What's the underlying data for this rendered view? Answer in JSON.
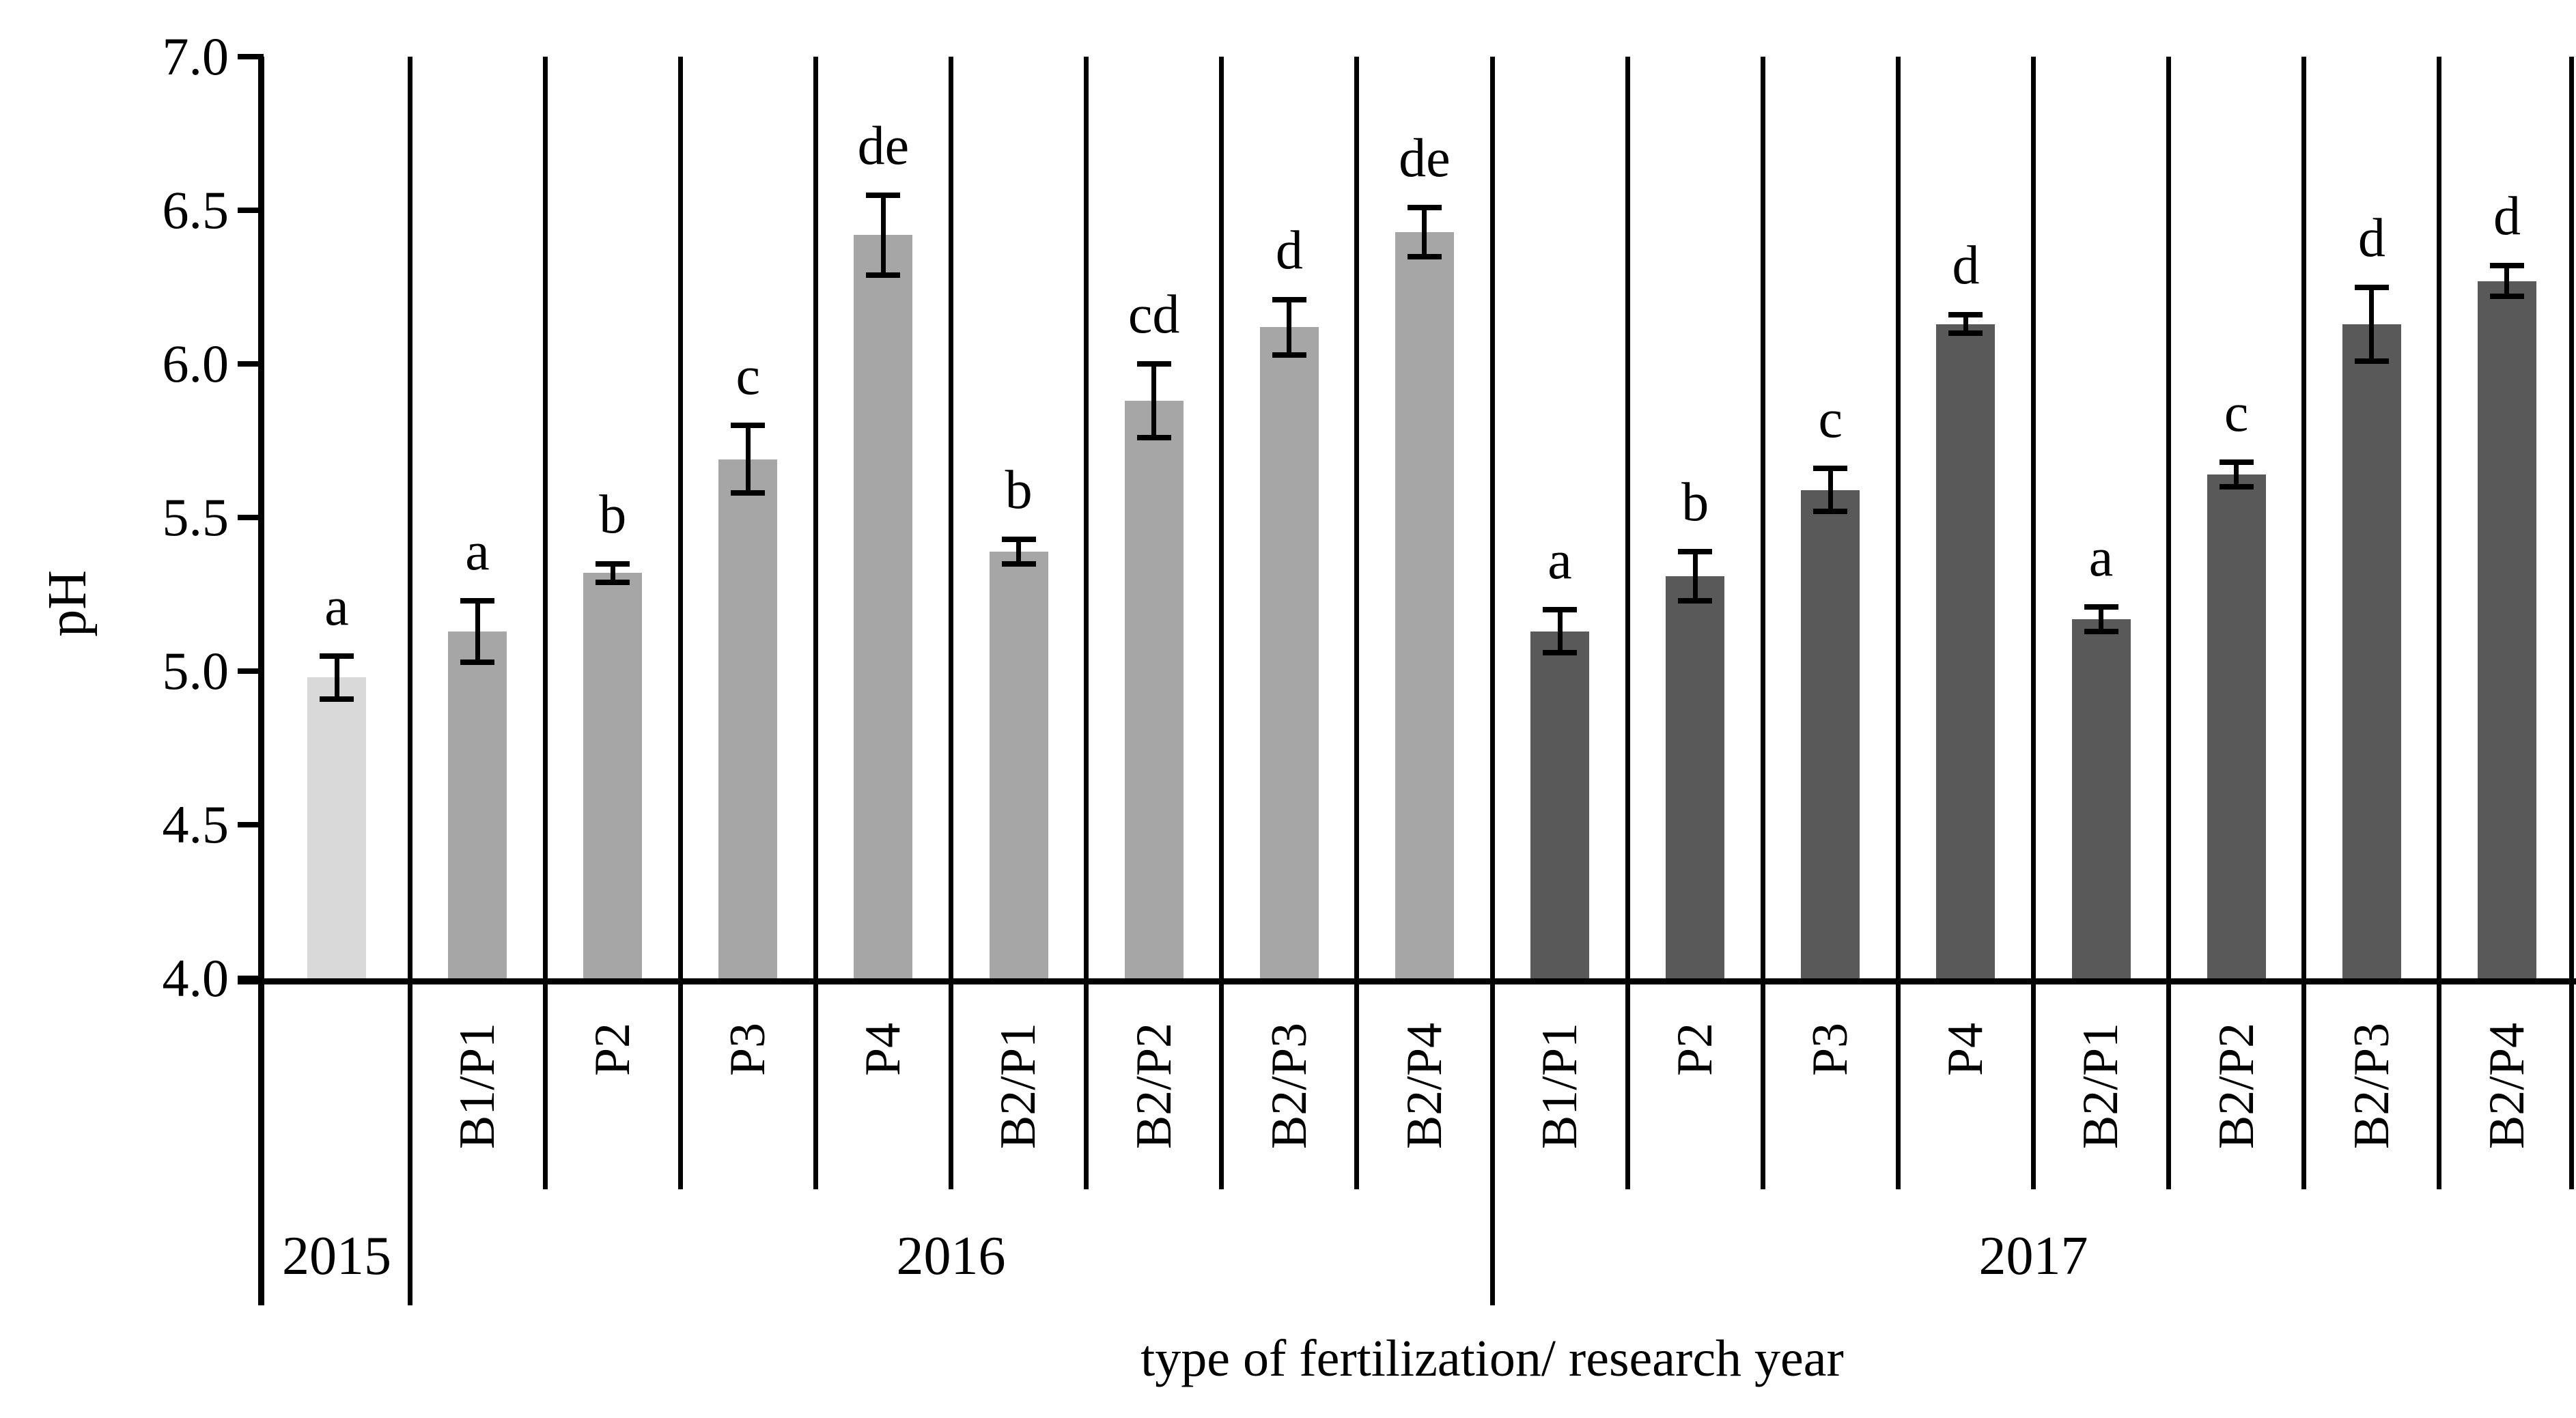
{
  "chart_data": {
    "type": "bar",
    "title": "",
    "xlabel": "type of fertilization/ research year",
    "ylabel": "pH",
    "ylim": [
      4.0,
      7.0
    ],
    "ytick_step": 0.5,
    "yticks": [
      "7.0",
      "6.5",
      "6.0",
      "5.5",
      "5.0",
      "4.5",
      "4.0"
    ],
    "grid": false,
    "legend": "none",
    "error_bars": true,
    "groups": [
      {
        "year": "2015",
        "color": "#d9d9d9",
        "bars": [
          {
            "label": "",
            "value": 4.98,
            "error": 0.07,
            "letter": "a"
          }
        ]
      },
      {
        "year": "2016",
        "color": "#a6a6a6",
        "bars": [
          {
            "label": "B1/P1",
            "value": 5.13,
            "error": 0.1,
            "letter": "a"
          },
          {
            "label": "P2",
            "value": 5.32,
            "error": 0.03,
            "letter": "b"
          },
          {
            "label": "P3",
            "value": 5.69,
            "error": 0.11,
            "letter": "c"
          },
          {
            "label": "P4",
            "value": 6.42,
            "error": 0.13,
            "letter": "de"
          },
          {
            "label": "B2/P1",
            "value": 5.39,
            "error": 0.04,
            "letter": "b"
          },
          {
            "label": "B2/P2",
            "value": 5.88,
            "error": 0.12,
            "letter": "cd"
          },
          {
            "label": "B2/P3",
            "value": 6.12,
            "error": 0.09,
            "letter": "d"
          },
          {
            "label": "B2/P4",
            "value": 6.43,
            "error": 0.08,
            "letter": "de"
          }
        ]
      },
      {
        "year": "2017",
        "color": "#595959",
        "bars": [
          {
            "label": "B1/P1",
            "value": 5.13,
            "error": 0.07,
            "letter": "a"
          },
          {
            "label": "P2",
            "value": 5.31,
            "error": 0.08,
            "letter": "b"
          },
          {
            "label": "P3",
            "value": 5.59,
            "error": 0.07,
            "letter": "c"
          },
          {
            "label": "P4",
            "value": 6.13,
            "error": 0.03,
            "letter": "d"
          },
          {
            "label": "B2/P1",
            "value": 5.17,
            "error": 0.04,
            "letter": "a"
          },
          {
            "label": "B2/P2",
            "value": 5.64,
            "error": 0.04,
            "letter": "c"
          },
          {
            "label": "B2/P3",
            "value": 6.13,
            "error": 0.12,
            "letter": "d"
          },
          {
            "label": "B2/P4",
            "value": 6.27,
            "error": 0.05,
            "letter": "d"
          }
        ]
      }
    ]
  }
}
